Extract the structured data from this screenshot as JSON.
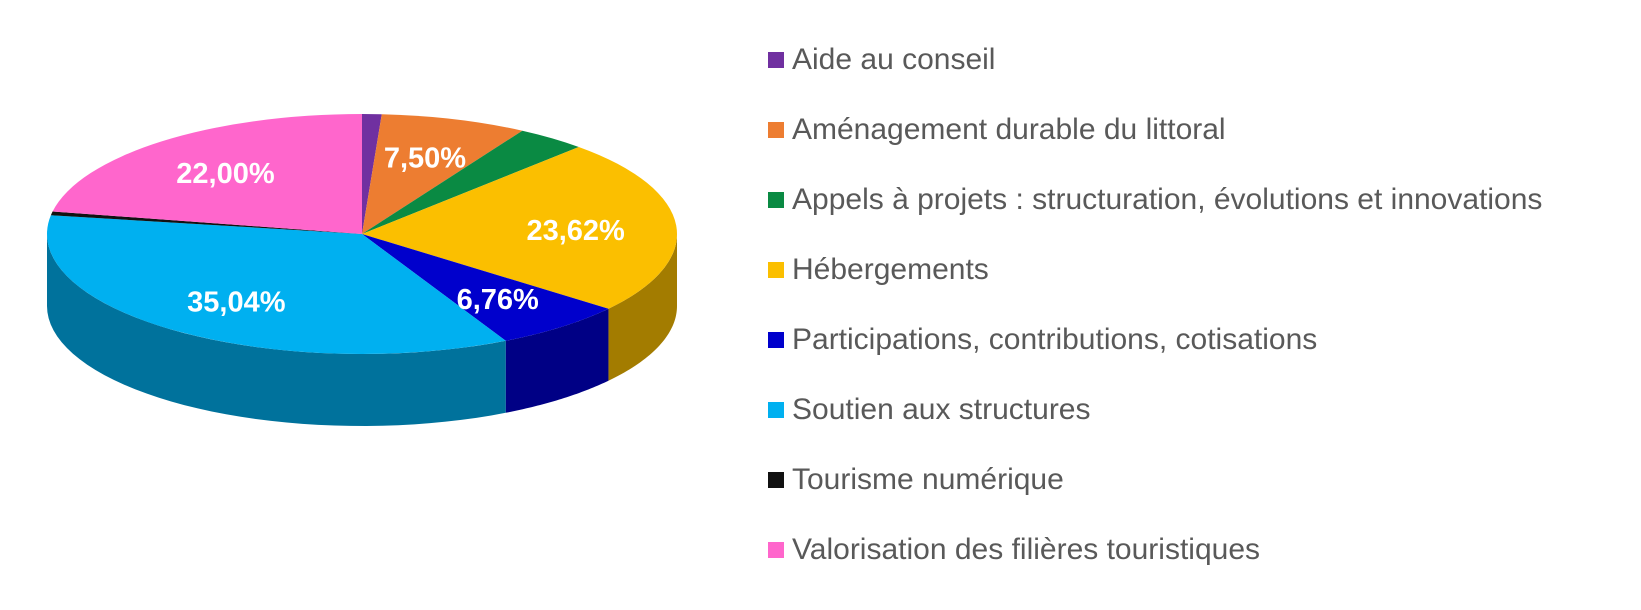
{
  "chart_data": {
    "type": "pie3d",
    "categories": [
      "Aide au conseil",
      "Aménagement durable du littoral",
      "Appels à projets : structuration, évolutions et innovations",
      "Hébergements",
      "Participations, contributions, cotisations",
      "Soutien aux structures",
      "Tourisme numérique",
      "Valorisation des filières touristiques"
    ],
    "values": [
      1.0,
      7.5,
      3.58,
      23.62,
      6.76,
      35.04,
      0.5,
      22.0
    ],
    "value_labels": [
      null,
      "7,50%",
      null,
      "23,62%",
      "6,76%",
      "35,04%",
      null,
      "22,00%"
    ],
    "colors": [
      "#7030a0",
      "#ed7d31",
      "#0a8a43",
      "#fbbf00",
      "#0000cc",
      "#00b0f0",
      "#111111",
      "#ff66cc"
    ],
    "legend": "right"
  }
}
